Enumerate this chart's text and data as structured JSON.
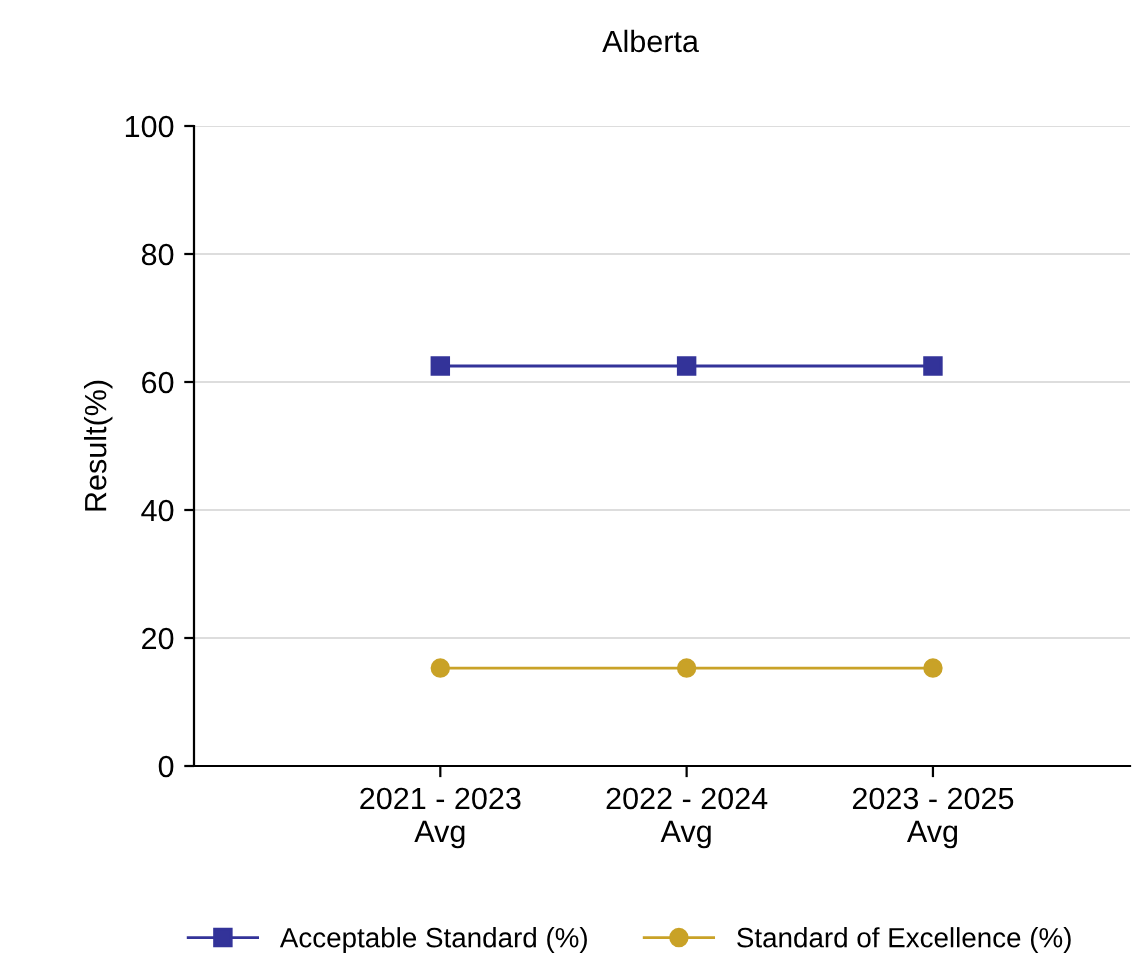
{
  "chart_data": {
    "type": "line",
    "title": "Alberta",
    "ylabel": "Result(%)",
    "categories": [
      "2021 - 2023\nAvg",
      "2022 - 2024\nAvg",
      "2023 - 2025\nAvg"
    ],
    "series": [
      {
        "name": "Acceptable Standard (%)",
        "color": "#333399",
        "marker": "square",
        "values": [
          62.5,
          62.5,
          62.5
        ]
      },
      {
        "name": "Standard of Excellence (%)",
        "color": "#c9a227",
        "marker": "circle",
        "values": [
          15.3,
          15.3,
          15.3
        ]
      }
    ],
    "ylim": [
      0,
      100
    ],
    "yticks": [
      0,
      20,
      40,
      60,
      80,
      100
    ],
    "grid": "y",
    "legend": "bottom",
    "line_style": "solid"
  }
}
